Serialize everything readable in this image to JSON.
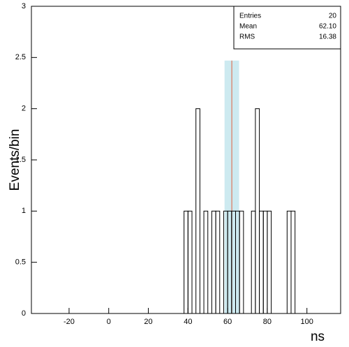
{
  "chart_data": {
    "type": "histogram",
    "x_label": "ns",
    "y_label": "Events/bin",
    "bins": [
      38,
      40,
      42,
      44,
      46,
      48,
      50,
      52,
      54,
      56,
      58,
      60,
      62,
      64,
      66,
      68,
      70,
      72,
      74,
      76,
      78,
      80,
      82,
      84,
      86,
      88,
      90,
      92,
      94,
      96
    ],
    "values": [
      1,
      1,
      0,
      2,
      0,
      1,
      0,
      1,
      1,
      0,
      1,
      1,
      1,
      1,
      1,
      0,
      0,
      1,
      2,
      1,
      1,
      1,
      0,
      0,
      0,
      0,
      1,
      1,
      0
    ],
    "color": "#000000",
    "xlim": [
      -39,
      117
    ],
    "ylim": [
      0,
      3
    ],
    "xticks": [
      -20,
      0,
      20,
      40,
      60,
      80,
      100
    ],
    "yticks": [
      0,
      0.5,
      1,
      1.5,
      2,
      2.5,
      3
    ],
    "stats": [
      {
        "label": "Entries",
        "value": "20"
      },
      {
        "label": "Mean",
        "value": "62.10"
      },
      {
        "label": "RMS",
        "value": "16.38"
      }
    ]
  }
}
